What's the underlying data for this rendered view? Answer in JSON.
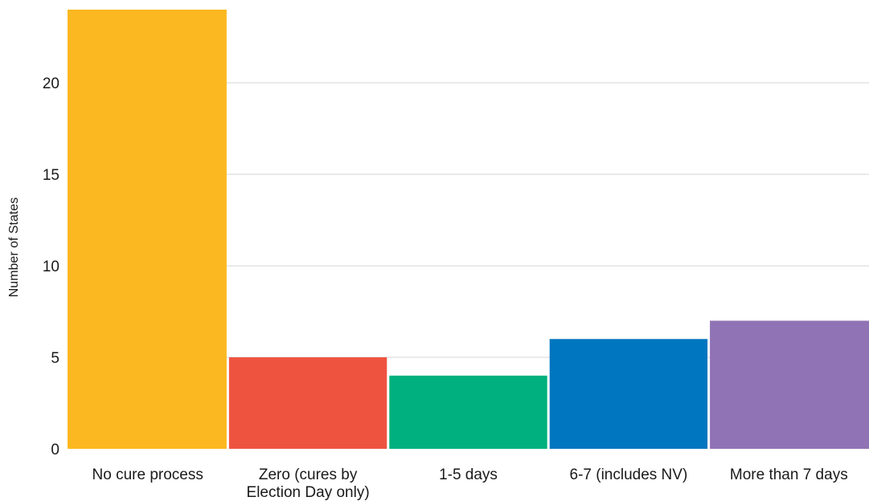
{
  "chart_data": {
    "type": "bar",
    "ylabel": "Number of States",
    "ylim": [
      0,
      24
    ],
    "yticks": [
      0,
      5,
      10,
      15,
      20
    ],
    "grid": true,
    "categories": [
      [
        "No cure process"
      ],
      [
        "Zero (cures by",
        "Election Day only)"
      ],
      [
        "1-5 days"
      ],
      [
        "6-7 (includes NV)"
      ],
      [
        "More than 7 days"
      ]
    ],
    "values": [
      24,
      5,
      4,
      6,
      7
    ],
    "colors": [
      "#FBB820",
      "#EE5340",
      "#00B07E",
      "#0076C0",
      "#9073B4"
    ]
  }
}
